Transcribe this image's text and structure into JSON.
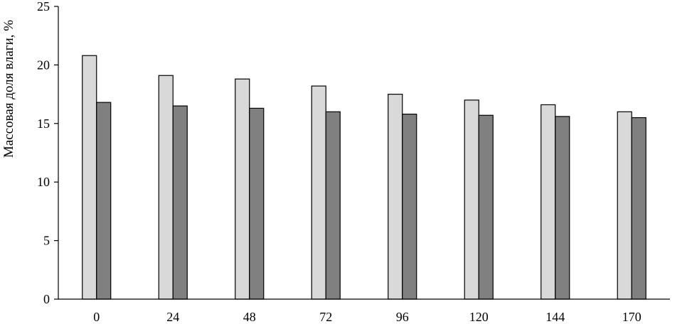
{
  "chart_data": {
    "type": "bar",
    "categories": [
      "0",
      "24",
      "48",
      "72",
      "96",
      "120",
      "144",
      "170"
    ],
    "series": [
      {
        "values": [
          20.8,
          19.1,
          18.8,
          18.2,
          17.5,
          17.0,
          16.6,
          16.0
        ],
        "color": "#d9d9d9"
      },
      {
        "values": [
          16.8,
          16.5,
          16.3,
          16.0,
          15.8,
          15.7,
          15.6,
          15.5
        ],
        "color": "#808080"
      }
    ],
    "title": "",
    "xlabel": "",
    "ylabel": "Массовая  доля влаги, %",
    "ylim": [
      0,
      25
    ],
    "yticks": [
      0,
      5,
      10,
      15,
      20,
      25
    ],
    "grid": false,
    "legend": "none"
  }
}
